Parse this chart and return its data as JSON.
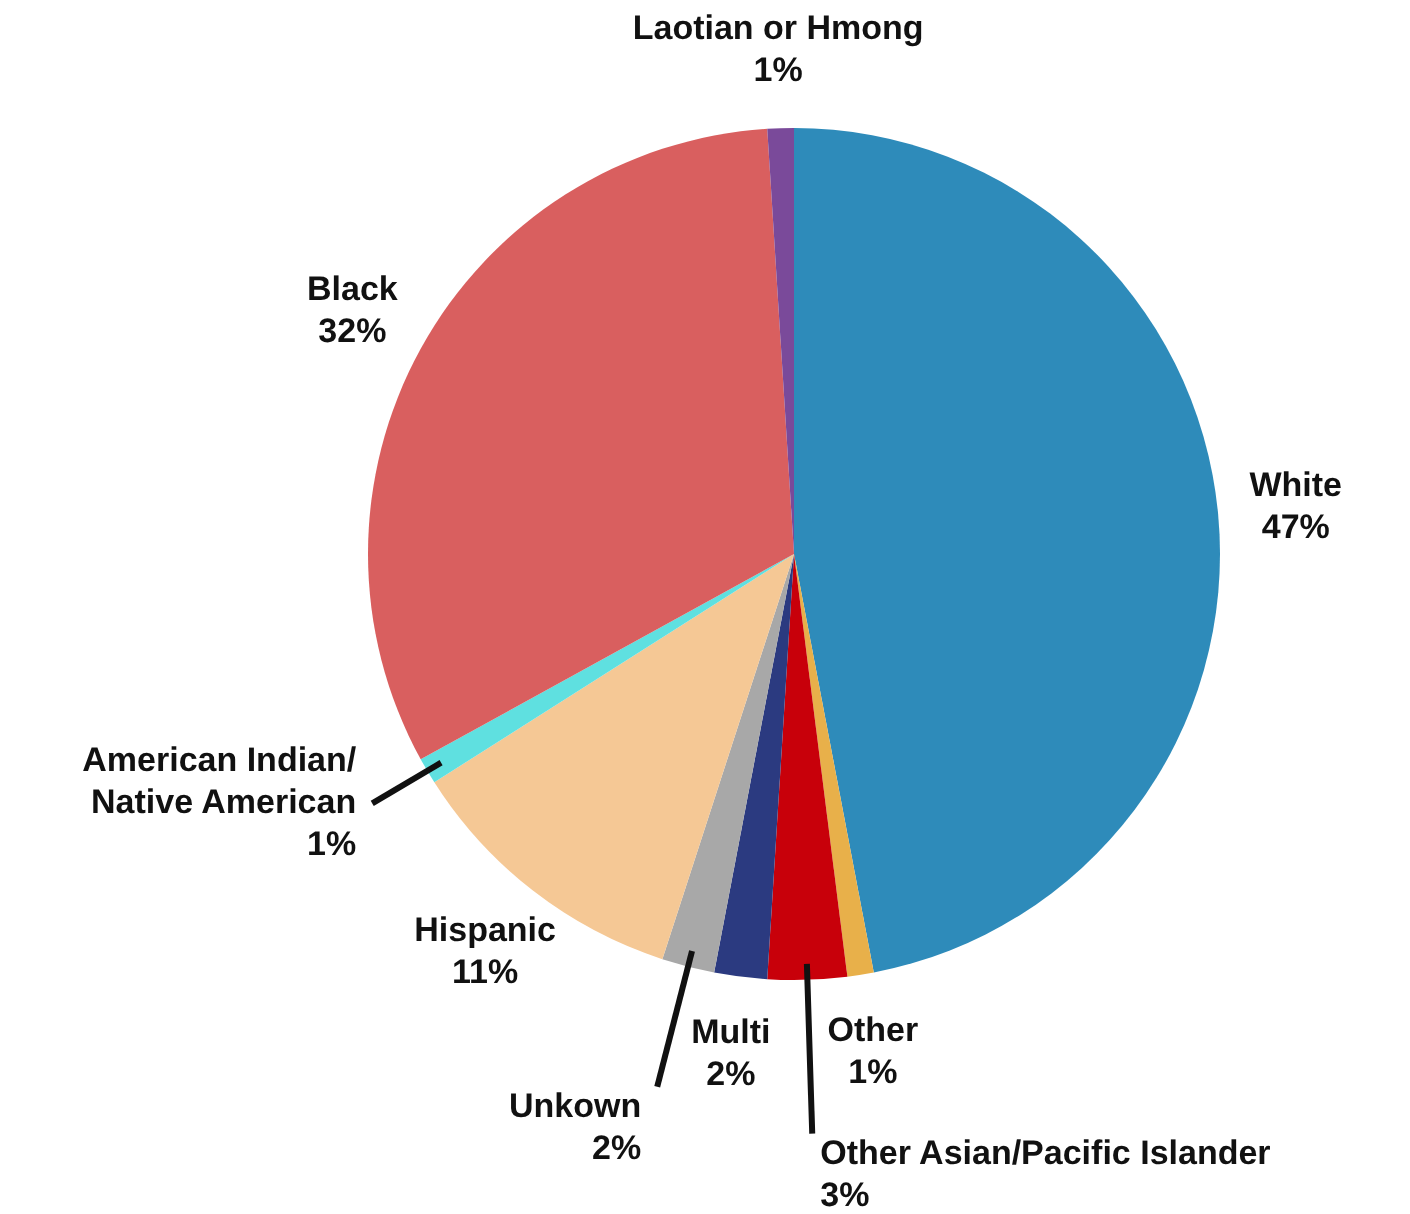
{
  "chart_data": {
    "type": "pie",
    "categories": [
      "White",
      "Other",
      "Other Asian/Pacific Islander",
      "Multi",
      "Unkown",
      "Hispanic",
      "American Indian/\nNative American",
      "Black",
      "Laotian or Hmong"
    ],
    "values": [
      47,
      1,
      3,
      2,
      2,
      11,
      1,
      32,
      1
    ],
    "value_labels": [
      "47%",
      "1%",
      "3%",
      "2%",
      "2%",
      "11%",
      "1%",
      "32%",
      "1%"
    ],
    "colors": [
      "#2e8bba",
      "#e8b04a",
      "#c8000a",
      "#2b3a80",
      "#a8a8a8",
      "#f5c895",
      "#5fe0e0",
      "#d95f5f",
      "#7a4a9a"
    ]
  }
}
